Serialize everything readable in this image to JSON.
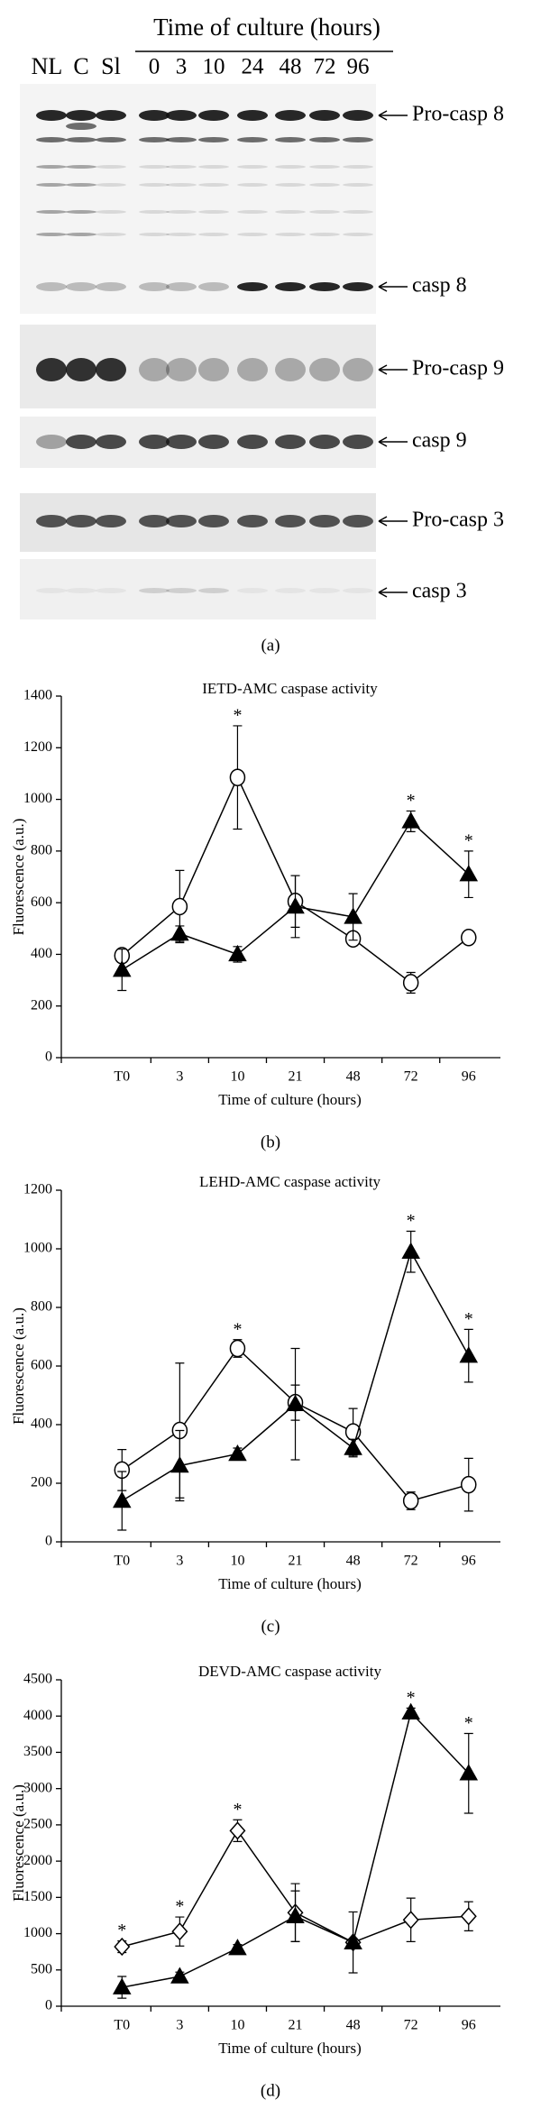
{
  "blot": {
    "lane_labels": [
      "NL",
      "C",
      "Sl"
    ],
    "time_header": "Time of culture (hours)",
    "time_labels": [
      "0",
      "3",
      "10",
      "24",
      "48",
      "72",
      "96"
    ],
    "band_labels": [
      "Pro-casp 8",
      "casp 8",
      "Pro-casp 9",
      "casp 9",
      "Pro-casp 3",
      "casp 3"
    ],
    "panel_label": "(a)"
  },
  "chart_data": [
    {
      "type": "line",
      "title": "IETD-AMC caspase activity",
      "panel_label": "(b)",
      "xlabel": "Time of culture  (hours)",
      "ylabel": "Fluorescence (a.u.)",
      "categories": [
        "T0",
        "3",
        "10",
        "21",
        "48",
        "72",
        "96"
      ],
      "ylim": [
        0,
        1400
      ],
      "yticks": [
        0,
        200,
        400,
        600,
        800,
        1000,
        1200,
        1400
      ],
      "series": [
        {
          "color": "#000000",
          "marker": "circle",
          "marker_fill": "#ffffff",
          "values": [
            395,
            585,
            1085,
            605,
            460,
            290,
            465
          ],
          "errors": [
            25,
            140,
            200,
            100,
            10,
            40,
            10
          ],
          "annotations": [
            null,
            null,
            "*",
            null,
            null,
            null,
            null
          ]
        },
        {
          "color": "#000000",
          "marker": "triangle",
          "marker_fill": "#000000",
          "values": [
            340,
            480,
            400,
            585,
            545,
            915,
            710
          ],
          "errors": [
            80,
            30,
            30,
            120,
            90,
            40,
            90
          ],
          "annotations": [
            null,
            null,
            null,
            null,
            null,
            "*",
            "*"
          ]
        }
      ]
    },
    {
      "type": "line",
      "title": "LEHD-AMC caspase activity",
      "panel_label": "(c)",
      "xlabel": "Time of culture  (hours)",
      "ylabel": "Fluorescence (a.u.)",
      "categories": [
        "T0",
        "3",
        "10",
        "21",
        "48",
        "72",
        "96"
      ],
      "ylim": [
        0,
        1200
      ],
      "yticks": [
        0,
        200,
        400,
        600,
        800,
        1000,
        1200
      ],
      "series": [
        {
          "color": "#000000",
          "marker": "circle",
          "marker_fill": "#ffffff",
          "values": [
            245,
            380,
            660,
            475,
            375,
            140,
            195
          ],
          "errors": [
            70,
            230,
            30,
            60,
            80,
            30,
            90
          ],
          "annotations": [
            null,
            null,
            "*",
            null,
            null,
            null,
            null
          ]
        },
        {
          "color": "#000000",
          "marker": "triangle",
          "marker_fill": "#000000",
          "values": [
            140,
            260,
            300,
            470,
            320,
            990,
            635
          ],
          "errors": [
            100,
            120,
            20,
            190,
            30,
            70,
            90
          ],
          "annotations": [
            null,
            null,
            null,
            null,
            null,
            "*",
            "*"
          ]
        }
      ]
    },
    {
      "type": "line",
      "title": "DEVD-AMC caspase activity",
      "panel_label": "(d)",
      "xlabel": "Time of culture  (hours)",
      "ylabel": "Fluorescence (a.u.)",
      "categories": [
        "T0",
        "3",
        "10",
        "21",
        "48",
        "72",
        "96"
      ],
      "ylim": [
        0,
        4500
      ],
      "yticks": [
        0,
        500,
        1000,
        1500,
        2000,
        2500,
        3000,
        3500,
        4000,
        4500
      ],
      "series": [
        {
          "color": "#000000",
          "marker": "diamond",
          "marker_fill": "#ffffff",
          "values": [
            820,
            1030,
            2420,
            1290,
            880,
            1190,
            1240
          ],
          "errors": [
            80,
            200,
            150,
            400,
            50,
            300,
            200
          ],
          "annotations": [
            "*",
            "*",
            "*",
            null,
            null,
            null,
            null
          ]
        },
        {
          "color": "#000000",
          "marker": "triangle",
          "marker_fill": "#000000",
          "values": [
            260,
            410,
            800,
            1240,
            880,
            4050,
            3210
          ],
          "errors": [
            150,
            60,
            50,
            350,
            420,
            60,
            550
          ],
          "annotations": [
            null,
            null,
            null,
            null,
            null,
            "*",
            "*"
          ]
        }
      ]
    }
  ]
}
